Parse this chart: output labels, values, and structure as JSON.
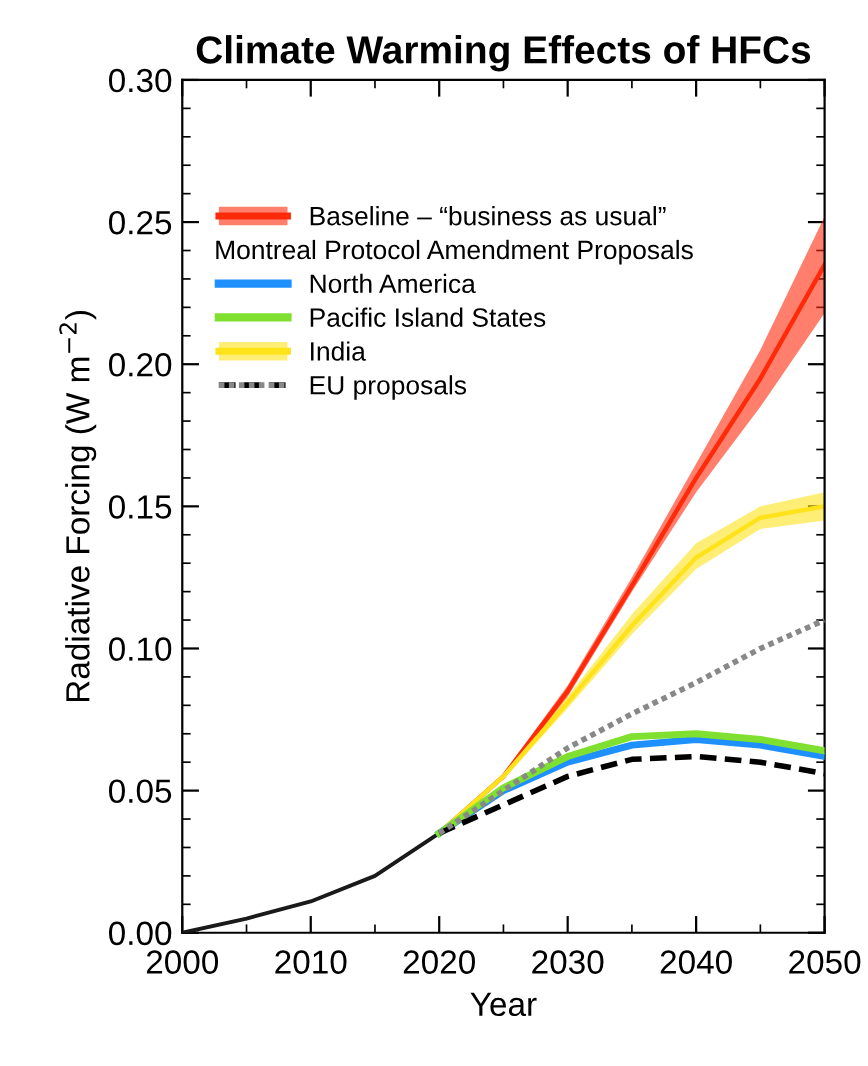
{
  "chart_data": {
    "type": "line",
    "title": "Climate Warming Effects of HFCs",
    "xlabel": "Year",
    "ylabel": "Radiative Forcing (W m$^{−2}$)",
    "legend_title": "Montreal Protocol Amendment Proposals",
    "annotations": [
      "EU proposals"
    ],
    "xlim": [
      2000,
      2050
    ],
    "xticks": [
      2000,
      2010,
      2020,
      2030,
      2040,
      2050
    ],
    "ylim": [
      0,
      0.3
    ],
    "yticks": [
      {
        "value": 0,
        "label": "0.00"
      },
      0.05,
      {
        "value": 0.1,
        "label": "0.10"
      },
      0.15,
      {
        "value": 0.2,
        "label": "0.20"
      },
      0.25,
      {
        "value": 0.3,
        "label": "0.30"
      }
    ],
    "grid": false,
    "legend": "top left",
    "series": [
      {
        "color": "#1a1a1a",
        "x": [
          2000,
          2005,
          2010,
          2015,
          2020
        ],
        "values": [
          0.0,
          0.005,
          0.011,
          0.02,
          0.035
        ]
      },
      {
        "name": "Baseline – “business as usual”",
        "type": "line",
        "color": "#ff2a0a",
        "x": [
          2020,
          2025,
          2030,
          2035,
          2040,
          2045,
          2050
        ],
        "values": [
          0.035,
          0.055,
          0.085,
          0.122,
          0.16,
          0.195,
          0.235
        ],
        "lower": [
          0.035,
          0.054,
          0.083,
          0.12,
          0.155,
          0.185,
          0.218
        ],
        "upper": [
          0.035,
          0.056,
          0.087,
          0.125,
          0.165,
          0.205,
          0.252
        ]
      },
      {
        "name": "North America",
        "color": "#1e90ff",
        "x": [
          2020,
          2025,
          2030,
          2035,
          2040,
          2045,
          2050
        ],
        "values": [
          0.035,
          0.05,
          0.06,
          0.066,
          0.068,
          0.066,
          0.062
        ]
      },
      {
        "name": "Pacific Island States",
        "color": "#7fe030",
        "x": [
          2020,
          2025,
          2030,
          2035,
          2040,
          2045,
          2050
        ],
        "values": [
          0.035,
          0.051,
          0.062,
          0.069,
          0.07,
          0.068,
          0.064
        ]
      },
      {
        "name": "India",
        "type": "line",
        "color": "#ffe31a",
        "x": [
          2020,
          2025,
          2030,
          2035,
          2040,
          2045,
          2050
        ],
        "values": [
          0.035,
          0.055,
          0.081,
          0.108,
          0.132,
          0.146,
          0.15
        ],
        "lower": [
          0.035,
          0.054,
          0.079,
          0.105,
          0.128,
          0.142,
          0.145
        ],
        "upper": [
          0.035,
          0.056,
          0.083,
          0.112,
          0.137,
          0.15,
          0.155
        ]
      },
      {
        "color": "#000000",
        "line_style": "dashed",
        "x": [
          2020,
          2025,
          2030,
          2035,
          2040,
          2045,
          2050
        ],
        "values": [
          0.035,
          0.045,
          0.055,
          0.061,
          0.062,
          0.06,
          0.056
        ]
      },
      {
        "color": "#888888",
        "line_style": "dotted",
        "x": [
          2020,
          2025,
          2030,
          2035,
          2040,
          2045,
          2050
        ],
        "values": [
          0.035,
          0.05,
          0.065,
          0.077,
          0.088,
          0.1,
          0.11
        ]
      }
    ]
  }
}
